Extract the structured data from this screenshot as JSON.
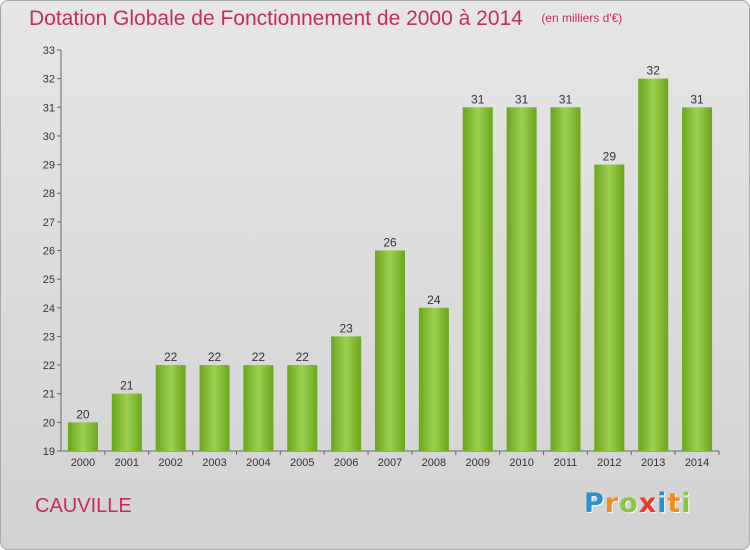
{
  "chart_data": {
    "type": "bar",
    "title": "Dotation Globale de Fonctionnement de 2000 à 2014",
    "subtitle": "(en milliers d'€)",
    "categories": [
      "2000",
      "2001",
      "2002",
      "2003",
      "2004",
      "2005",
      "2006",
      "2007",
      "2008",
      "2009",
      "2010",
      "2011",
      "2012",
      "2013",
      "2014"
    ],
    "values": [
      20,
      21,
      22,
      22,
      22,
      22,
      23,
      26,
      24,
      31,
      31,
      31,
      29,
      32,
      31
    ],
    "ylim": [
      19,
      33
    ],
    "yticks": [
      19,
      20,
      21,
      22,
      23,
      24,
      25,
      26,
      27,
      28,
      29,
      30,
      31,
      32,
      33
    ],
    "grid": false,
    "bar_color": "#7cb82f",
    "xlabel": "",
    "ylabel": ""
  },
  "commune": "CAUVILLE",
  "logo": {
    "letters": [
      {
        "char": "P",
        "color": "#2a8fd1"
      },
      {
        "char": "r",
        "color": "#f28c1e"
      },
      {
        "char": "o",
        "color": "#8cc63f"
      },
      {
        "char": "x",
        "color": "#e83b2c"
      },
      {
        "char": "i",
        "color": "#2a8fd1"
      },
      {
        "char": "t",
        "color": "#f28c1e"
      },
      {
        "char": "i",
        "color": "#8cc63f"
      }
    ]
  },
  "colors": {
    "title": "#c72a61",
    "axis": "#666666",
    "text": "#333333"
  }
}
